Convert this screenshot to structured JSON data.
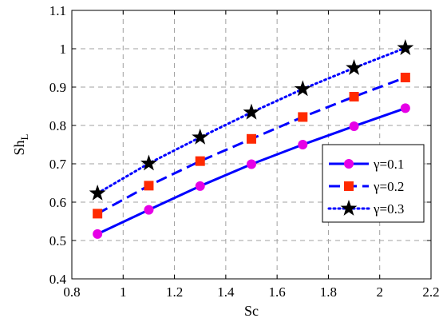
{
  "chart_data": {
    "type": "line",
    "xlabel": "Sc",
    "ylabel_main": "Sh",
    "ylabel_sub": "L",
    "xlim": [
      0.8,
      2.2
    ],
    "ylim": [
      0.4,
      1.1
    ],
    "xticks": [
      "0.8",
      "1",
      "1.2",
      "1.4",
      "1.6",
      "1.8",
      "2",
      "2.2"
    ],
    "yticks": [
      "0.4",
      "0.5",
      "0.6",
      "0.7",
      "0.8",
      "0.9",
      "1",
      "1.1"
    ],
    "grid": true,
    "legend_position": "right",
    "x": [
      0.9,
      1.1,
      1.3,
      1.5,
      1.7,
      1.9,
      2.1
    ],
    "series": [
      {
        "name": "γ=0.1",
        "values": [
          0.517,
          0.58,
          0.642,
          0.699,
          0.75,
          0.798,
          0.845
        ],
        "color": "#0000ff",
        "line_style": "solid",
        "marker": "circle",
        "marker_color": "#e600e6"
      },
      {
        "name": "γ=0.2",
        "values": [
          0.57,
          0.643,
          0.707,
          0.765,
          0.822,
          0.875,
          0.925
        ],
        "color": "#0000ff",
        "line_style": "dashed",
        "marker": "square",
        "marker_color": "#ff2a00"
      },
      {
        "name": "γ=0.3",
        "values": [
          0.623,
          0.701,
          0.769,
          0.834,
          0.895,
          0.95,
          1.002
        ],
        "color": "#0000ff",
        "line_style": "dotted",
        "marker": "star",
        "marker_color": "#000000"
      }
    ]
  }
}
